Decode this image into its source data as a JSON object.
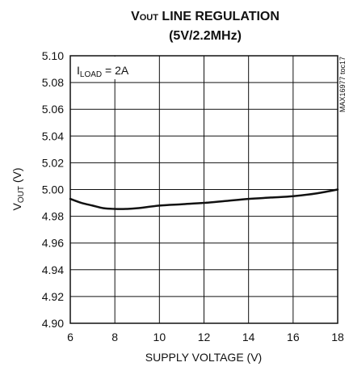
{
  "chart_data": {
    "type": "line",
    "title": {
      "prefix": "V",
      "subscript": "OUT",
      "rest": " LINE REGULATION"
    },
    "subtitle": "(5V/2.2MHz)",
    "xlabel": "SUPPLY VOLTAGE (V)",
    "ylabel": {
      "prefix": "V",
      "subscript": "OUT",
      "rest": " (V)"
    },
    "xlim": [
      6,
      18
    ],
    "ylim": [
      4.9,
      5.1
    ],
    "xticks": [
      "6",
      "8",
      "10",
      "12",
      "14",
      "16",
      "18"
    ],
    "yticks": [
      "4.90",
      "4.92",
      "4.94",
      "4.96",
      "4.98",
      "5.00",
      "5.02",
      "5.04",
      "5.06",
      "5.08",
      "5.10"
    ],
    "grid": true,
    "annotation": {
      "prefix": "I",
      "subscript": "LOAD",
      "rest": " = 2A"
    },
    "figure_code": "MAX16977 toc17",
    "series": [
      {
        "x": [
          6.0,
          6.5,
          7.0,
          7.5,
          8.0,
          8.5,
          9.0,
          10.0,
          11.0,
          12.0,
          13.0,
          14.0,
          15.0,
          16.0,
          17.0,
          18.0
        ],
        "y": [
          4.993,
          4.99,
          4.988,
          4.986,
          4.9855,
          4.9855,
          4.986,
          4.988,
          4.989,
          4.99,
          4.9915,
          4.993,
          4.994,
          4.995,
          4.997,
          5.0
        ]
      }
    ],
    "line_color": "#111111"
  }
}
